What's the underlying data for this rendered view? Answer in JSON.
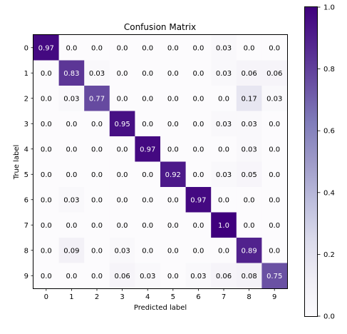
{
  "chart_data": {
    "type": "heatmap",
    "title": "Confusion Matrix",
    "xlabel": "Predicted label",
    "ylabel": "True label",
    "x_categories": [
      "0",
      "1",
      "2",
      "3",
      "4",
      "5",
      "6",
      "7",
      "8",
      "9"
    ],
    "y_categories": [
      "0",
      "1",
      "2",
      "3",
      "4",
      "5",
      "6",
      "7",
      "8",
      "9"
    ],
    "cell_labels": [
      [
        "0.97",
        "0.0",
        "0.0",
        "0.0",
        "0.0",
        "0.0",
        "0.0",
        "0.03",
        "0.0",
        "0.0"
      ],
      [
        "0.0",
        "0.83",
        "0.03",
        "0.0",
        "0.0",
        "0.0",
        "0.0",
        "0.03",
        "0.06",
        "0.06"
      ],
      [
        "0.0",
        "0.03",
        "0.77",
        "0.0",
        "0.0",
        "0.0",
        "0.0",
        "0.0",
        "0.17",
        "0.03"
      ],
      [
        "0.0",
        "0.0",
        "0.0",
        "0.95",
        "0.0",
        "0.0",
        "0.0",
        "0.03",
        "0.03",
        "0.0"
      ],
      [
        "0.0",
        "0.0",
        "0.0",
        "0.0",
        "0.97",
        "0.0",
        "0.0",
        "0.0",
        "0.03",
        "0.0"
      ],
      [
        "0.0",
        "0.0",
        "0.0",
        "0.0",
        "0.0",
        "0.92",
        "0.0",
        "0.03",
        "0.05",
        "0.0"
      ],
      [
        "0.0",
        "0.03",
        "0.0",
        "0.0",
        "0.0",
        "0.0",
        "0.97",
        "0.0",
        "0.0",
        "0.0"
      ],
      [
        "0.0",
        "0.0",
        "0.0",
        "0.0",
        "0.0",
        "0.0",
        "0.0",
        "1.0",
        "0.0",
        "0.0"
      ],
      [
        "0.0",
        "0.09",
        "0.0",
        "0.03",
        "0.0",
        "0.0",
        "0.0",
        "0.0",
        "0.89",
        "0.0"
      ],
      [
        "0.0",
        "0.0",
        "0.0",
        "0.06",
        "0.03",
        "0.0",
        "0.03",
        "0.06",
        "0.08",
        "0.75"
      ]
    ],
    "colorbar": {
      "range": [
        0.0,
        1.0
      ],
      "ticks": [
        "0.0",
        "0.2",
        "0.4",
        "0.6",
        "0.8",
        "1.0"
      ]
    },
    "colormap": "Purples",
    "colors": {
      "low": "#fcfbfd",
      "high": "#3f007d",
      "text_light": "#ffffff",
      "text_dark": "#000000"
    },
    "grid": false
  }
}
